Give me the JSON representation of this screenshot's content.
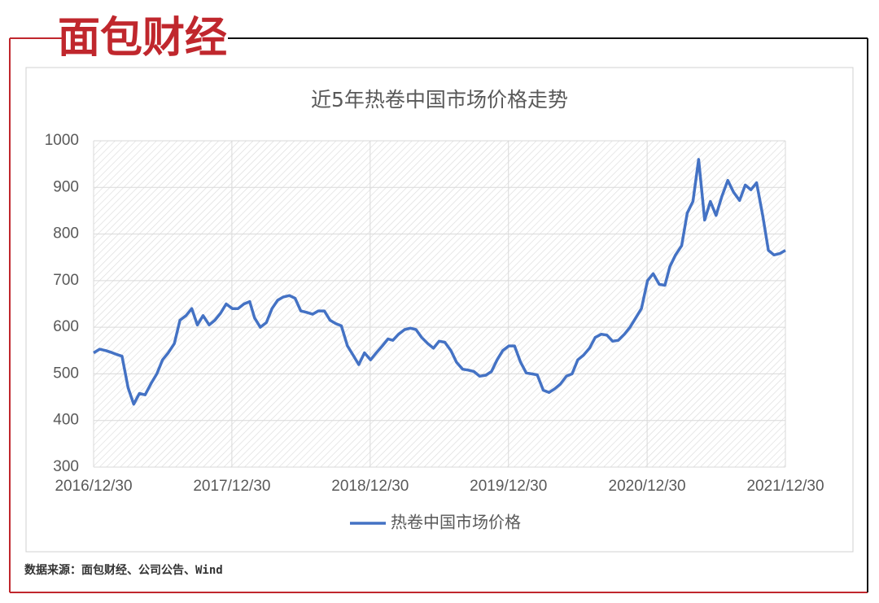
{
  "logo": "面包财经",
  "source": "数据来源：面包财经、公司公告、Wind",
  "chart_data": {
    "type": "line",
    "title": "近5年热卷中国市场价格走势",
    "x": [
      "2016/12/30",
      "2017/01/15",
      "2017/01/31",
      "2017/02/15",
      "2017/02/28",
      "2017/03/15",
      "2017/03/31",
      "2017/04/15",
      "2017/04/30",
      "2017/05/15",
      "2017/05/31",
      "2017/06/15",
      "2017/06/30",
      "2017/07/15",
      "2017/07/31",
      "2017/08/15",
      "2017/08/31",
      "2017/09/15",
      "2017/09/30",
      "2017/10/15",
      "2017/10/31",
      "2017/11/15",
      "2017/11/30",
      "2017/12/15",
      "2017/12/31",
      "2018/01/15",
      "2018/01/31",
      "2018/02/15",
      "2018/02/28",
      "2018/03/15",
      "2018/03/31",
      "2018/04/15",
      "2018/04/30",
      "2018/05/15",
      "2018/05/31",
      "2018/06/15",
      "2018/06/30",
      "2018/07/15",
      "2018/07/31",
      "2018/08/15",
      "2018/08/31",
      "2018/09/15",
      "2018/09/30",
      "2018/10/15",
      "2018/10/31",
      "2018/11/15",
      "2018/11/30",
      "2018/12/15",
      "2018/12/31",
      "2019/01/15",
      "2019/01/31",
      "2019/02/15",
      "2019/02/28",
      "2019/03/15",
      "2019/03/31",
      "2019/04/15",
      "2019/04/30",
      "2019/05/15",
      "2019/05/31",
      "2019/06/15",
      "2019/06/30",
      "2019/07/15",
      "2019/07/31",
      "2019/08/15",
      "2019/08/31",
      "2019/09/15",
      "2019/09/30",
      "2019/10/15",
      "2019/10/31",
      "2019/11/15",
      "2019/11/30",
      "2019/12/15",
      "2019/12/31",
      "2020/01/15",
      "2020/01/31",
      "2020/02/15",
      "2020/02/29",
      "2020/03/15",
      "2020/03/31",
      "2020/04/15",
      "2020/04/30",
      "2020/05/15",
      "2020/05/31",
      "2020/06/15",
      "2020/06/30",
      "2020/07/15",
      "2020/07/31",
      "2020/08/15",
      "2020/08/31",
      "2020/09/15",
      "2020/09/30",
      "2020/10/15",
      "2020/10/31",
      "2020/11/15",
      "2020/11/30",
      "2020/12/15",
      "2020/12/31",
      "2021/01/15",
      "2021/01/31",
      "2021/02/15",
      "2021/02/28",
      "2021/03/15",
      "2021/03/31",
      "2021/04/15",
      "2021/04/30",
      "2021/05/15",
      "2021/05/31",
      "2021/06/15",
      "2021/06/30",
      "2021/07/15",
      "2021/07/31",
      "2021/08/15",
      "2021/08/31",
      "2021/09/15",
      "2021/09/30",
      "2021/10/15",
      "2021/10/31",
      "2021/11/15",
      "2021/11/30",
      "2021/12/15",
      "2021/12/30"
    ],
    "series": [
      {
        "name": "热卷中国市场价格",
        "color": "#4472c4",
        "values": [
          545,
          553,
          550,
          546,
          542,
          538,
          470,
          435,
          458,
          455,
          480,
          500,
          530,
          545,
          565,
          615,
          625,
          640,
          605,
          625,
          605,
          615,
          630,
          650,
          640,
          640,
          650,
          655,
          620,
          600,
          610,
          640,
          658,
          665,
          668,
          662,
          635,
          632,
          628,
          635,
          635,
          615,
          608,
          603,
          560,
          540,
          520,
          545,
          530,
          545,
          560,
          575,
          572,
          585,
          595,
          598,
          595,
          578,
          565,
          555,
          570,
          568,
          550,
          525,
          510,
          508,
          505,
          495,
          497,
          505,
          530,
          550,
          560,
          560,
          525,
          502,
          500,
          498,
          465,
          460,
          468,
          478,
          495,
          500,
          530,
          540,
          555,
          578,
          585,
          583,
          570,
          572,
          585,
          600,
          620,
          640,
          700,
          715,
          692,
          690,
          730,
          755,
          775,
          845,
          870,
          960,
          830,
          870,
          840,
          880,
          915,
          890,
          872,
          905,
          895,
          910,
          840,
          765,
          755,
          758,
          765
        ]
      }
    ],
    "xlim": [
      "2016/12/30",
      "2021/12/30"
    ],
    "xticks": [
      "2016/12/30",
      "2017/12/30",
      "2018/12/30",
      "2019/12/30",
      "2020/12/30",
      "2021/12/30"
    ],
    "ylim": [
      300,
      1000
    ],
    "yticks": [
      300,
      400,
      500,
      600,
      700,
      800,
      900,
      1000
    ],
    "grid": true
  }
}
